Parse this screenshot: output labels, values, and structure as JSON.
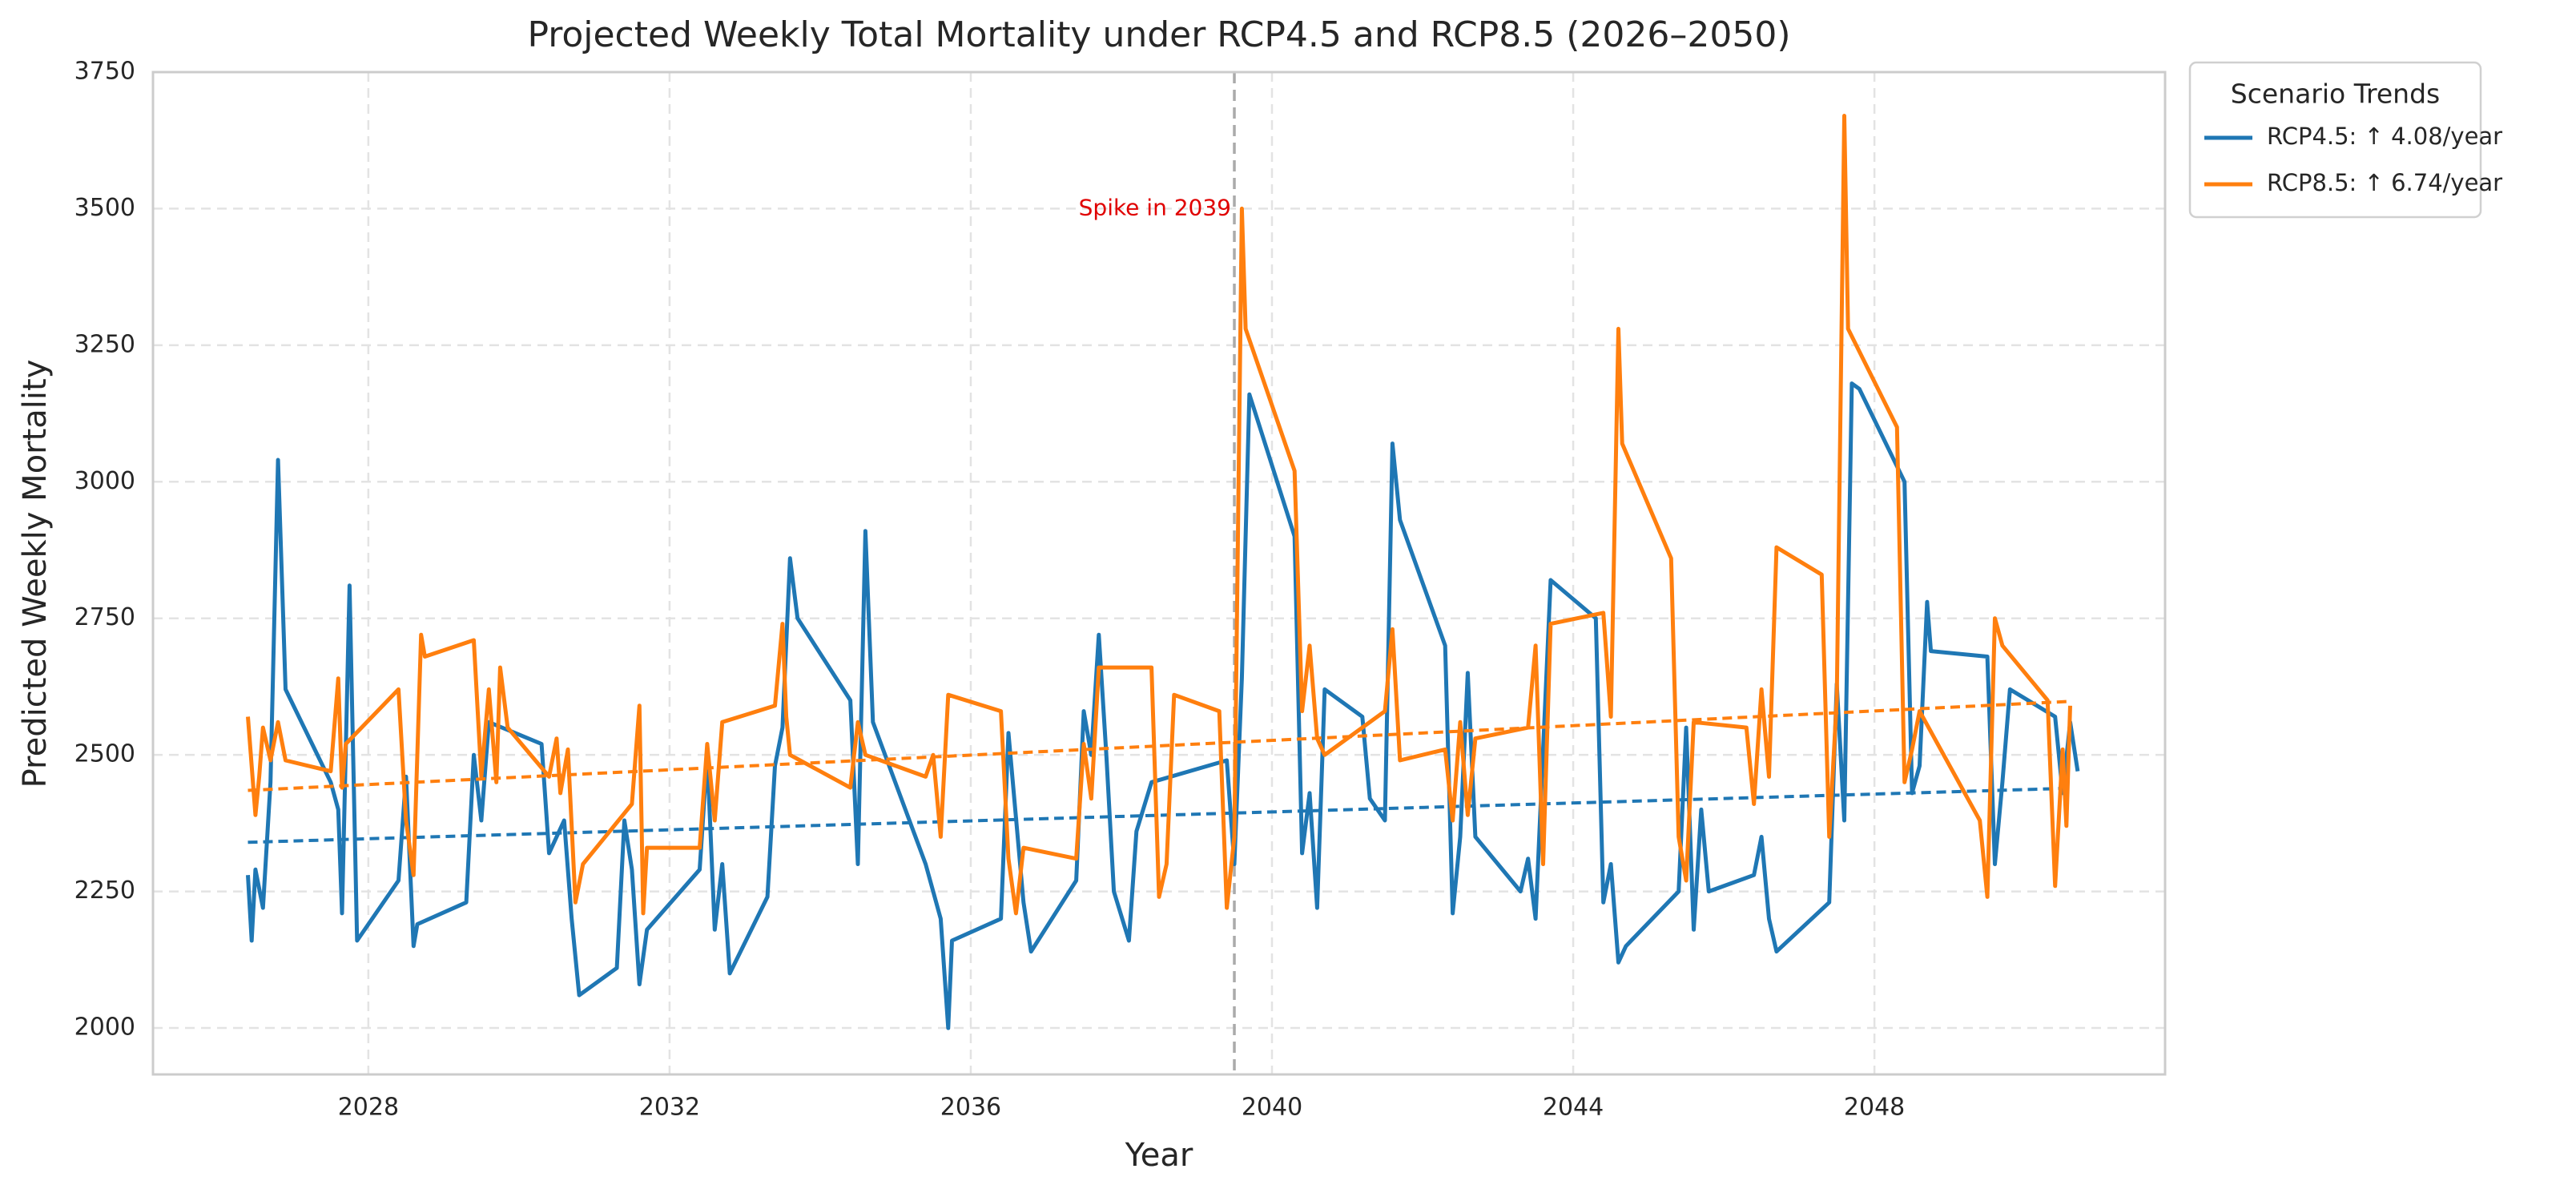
{
  "chart_data": {
    "type": "line",
    "title": "Projected Weekly Total Mortality under RCP4.5 and RCP8.5 (2026–2050)",
    "x_label": "Year",
    "y_label": "Predicted Weekly Mortality",
    "xlim": [
      2025.14,
      2051.86
    ],
    "ylim": [
      1915,
      3750
    ],
    "xticks": [
      2028,
      2032,
      2036,
      2040,
      2044,
      2048
    ],
    "yticks": [
      2000,
      2250,
      2500,
      2750,
      3000,
      3250,
      3500,
      3750
    ],
    "grid": true,
    "legend_title": "Scenario Trends",
    "legend_position": "outside-upper-right",
    "vline": 2039.5,
    "annotation": {
      "text": "Spike in 2039",
      "x": 2039.5,
      "y": 3500,
      "color": "#e00000"
    },
    "series": [
      {
        "name": "RCP4.5: ↑ 4.08/year",
        "color": "#1f77b4",
        "x": [
          2026.4,
          2026.45,
          2026.5,
          2026.6,
          2026.7,
          2026.8,
          2026.9,
          2027.5,
          2027.6,
          2027.65,
          2027.75,
          2027.85,
          2028.4,
          2028.5,
          2028.6,
          2028.65,
          2029.3,
          2029.4,
          2029.5,
          2029.6,
          2030.3,
          2030.4,
          2030.6,
          2030.7,
          2030.8,
          2031.3,
          2031.4,
          2031.5,
          2031.6,
          2031.7,
          2032.4,
          2032.5,
          2032.6,
          2032.7,
          2032.8,
          2033.3,
          2033.4,
          2033.5,
          2033.6,
          2033.7,
          2034.4,
          2034.5,
          2034.6,
          2034.7,
          2035.4,
          2035.5,
          2035.6,
          2035.7,
          2035.75,
          2036.4,
          2036.5,
          2036.7,
          2036.8,
          2037.4,
          2037.5,
          2037.6,
          2037.7,
          2037.8,
          2037.9,
          2038.1,
          2038.2,
          2038.4,
          2039.4,
          2039.5,
          2039.6,
          2039.7,
          2040.3,
          2040.4,
          2040.5,
          2040.6,
          2040.7,
          2041.2,
          2041.3,
          2041.5,
          2041.6,
          2041.7,
          2042.3,
          2042.4,
          2042.5,
          2042.6,
          2042.7,
          2043.3,
          2043.4,
          2043.5,
          2043.7,
          2044.3,
          2044.4,
          2044.5,
          2044.6,
          2044.7,
          2045.4,
          2045.5,
          2045.6,
          2045.7,
          2045.8,
          2046.4,
          2046.5,
          2046.6,
          2046.7,
          2047.4,
          2047.5,
          2047.6,
          2047.7,
          2047.8,
          2048.4,
          2048.5,
          2048.6,
          2048.7,
          2048.75,
          2049.5,
          2049.6,
          2049.7,
          2049.8,
          2050.4,
          2050.5,
          2050.6,
          2050.7
        ],
        "values": [
          2280,
          2160,
          2290,
          2220,
          2450,
          3040,
          2620,
          2450,
          2400,
          2210,
          2810,
          2160,
          2270,
          2460,
          2150,
          2190,
          2230,
          2500,
          2380,
          2560,
          2520,
          2320,
          2380,
          2200,
          2060,
          2110,
          2380,
          2290,
          2080,
          2180,
          2290,
          2500,
          2180,
          2300,
          2100,
          2240,
          2480,
          2550,
          2860,
          2750,
          2600,
          2300,
          2910,
          2560,
          2300,
          2250,
          2200,
          2000,
          2160,
          2200,
          2540,
          2230,
          2140,
          2270,
          2580,
          2500,
          2720,
          2500,
          2250,
          2160,
          2360,
          2450,
          2490,
          2300,
          2640,
          3160,
          2900,
          2320,
          2430,
          2220,
          2620,
          2570,
          2420,
          2380,
          3070,
          2930,
          2700,
          2210,
          2350,
          2650,
          2350,
          2250,
          2310,
          2200,
          2820,
          2750,
          2230,
          2300,
          2120,
          2150,
          2250,
          2550,
          2180,
          2400,
          2250,
          2280,
          2350,
          2200,
          2140,
          2230,
          2630,
          2380,
          3180,
          3170,
          3000,
          2430,
          2480,
          2780,
          2690,
          2680,
          2300,
          2450,
          2620,
          2570,
          2430,
          2560,
          2470
        ],
        "trend": {
          "x": [
            2026.4,
            2050.6
          ],
          "values": [
            2340,
            2439
          ]
        }
      },
      {
        "name": "RCP8.5: ↑ 6.74/year",
        "color": "#ff7f0e",
        "x": [
          2026.4,
          2026.5,
          2026.55,
          2026.6,
          2026.7,
          2026.8,
          2026.9,
          2027.5,
          2027.6,
          2027.65,
          2027.7,
          2028.4,
          2028.5,
          2028.6,
          2028.7,
          2028.75,
          2029.4,
          2029.5,
          2029.6,
          2029.7,
          2029.75,
          2029.85,
          2030.4,
          2030.5,
          2030.55,
          2030.65,
          2030.75,
          2030.85,
          2031.5,
          2031.6,
          2031.65,
          2031.7,
          2032.4,
          2032.5,
          2032.6,
          2032.7,
          2033.4,
          2033.5,
          2033.55,
          2033.6,
          2034.4,
          2034.5,
          2034.6,
          2035.4,
          2035.5,
          2035.6,
          2035.7,
          2036.4,
          2036.5,
          2036.6,
          2036.7,
          2037.4,
          2037.5,
          2037.6,
          2037.7,
          2038.4,
          2038.5,
          2038.6,
          2038.7,
          2039.3,
          2039.4,
          2039.5,
          2039.6,
          2039.65,
          2040.3,
          2040.4,
          2040.5,
          2040.6,
          2040.7,
          2041.5,
          2041.6,
          2041.7,
          2042.3,
          2042.4,
          2042.5,
          2042.6,
          2042.7,
          2043.4,
          2043.5,
          2043.6,
          2043.7,
          2044.4,
          2044.5,
          2044.6,
          2044.65,
          2045.3,
          2045.4,
          2045.5,
          2045.6,
          2046.3,
          2046.4,
          2046.5,
          2046.6,
          2046.7,
          2047.3,
          2047.4,
          2047.5,
          2047.6,
          2047.65,
          2048.3,
          2048.4,
          2048.5,
          2048.6,
          2049.4,
          2049.5,
          2049.6,
          2049.7,
          2050.3,
          2050.4,
          2050.5,
          2050.55,
          2050.6
        ],
        "values": [
          2570,
          2390,
          2460,
          2550,
          2490,
          2560,
          2490,
          2470,
          2640,
          2440,
          2520,
          2620,
          2380,
          2280,
          2720,
          2680,
          2710,
          2460,
          2620,
          2450,
          2660,
          2550,
          2460,
          2530,
          2430,
          2510,
          2230,
          2300,
          2410,
          2590,
          2210,
          2330,
          2330,
          2520,
          2380,
          2560,
          2590,
          2740,
          2570,
          2500,
          2440,
          2560,
          2500,
          2460,
          2500,
          2350,
          2610,
          2580,
          2310,
          2210,
          2330,
          2310,
          2520,
          2420,
          2660,
          2660,
          2240,
          2300,
          2610,
          2580,
          2220,
          2350,
          3500,
          3280,
          3020,
          2580,
          2700,
          2530,
          2500,
          2580,
          2730,
          2490,
          2510,
          2380,
          2560,
          2390,
          2530,
          2550,
          2700,
          2300,
          2740,
          2760,
          2570,
          3280,
          3070,
          2860,
          2350,
          2270,
          2560,
          2550,
          2410,
          2620,
          2460,
          2880,
          2830,
          2350,
          2600,
          3670,
          3280,
          3100,
          2450,
          2510,
          2580,
          2380,
          2240,
          2750,
          2700,
          2600,
          2260,
          2510,
          2370,
          2590
        ],
        "trend": {
          "x": [
            2026.4,
            2050.6
          ],
          "values": [
            2435,
            2598
          ]
        }
      }
    ]
  }
}
